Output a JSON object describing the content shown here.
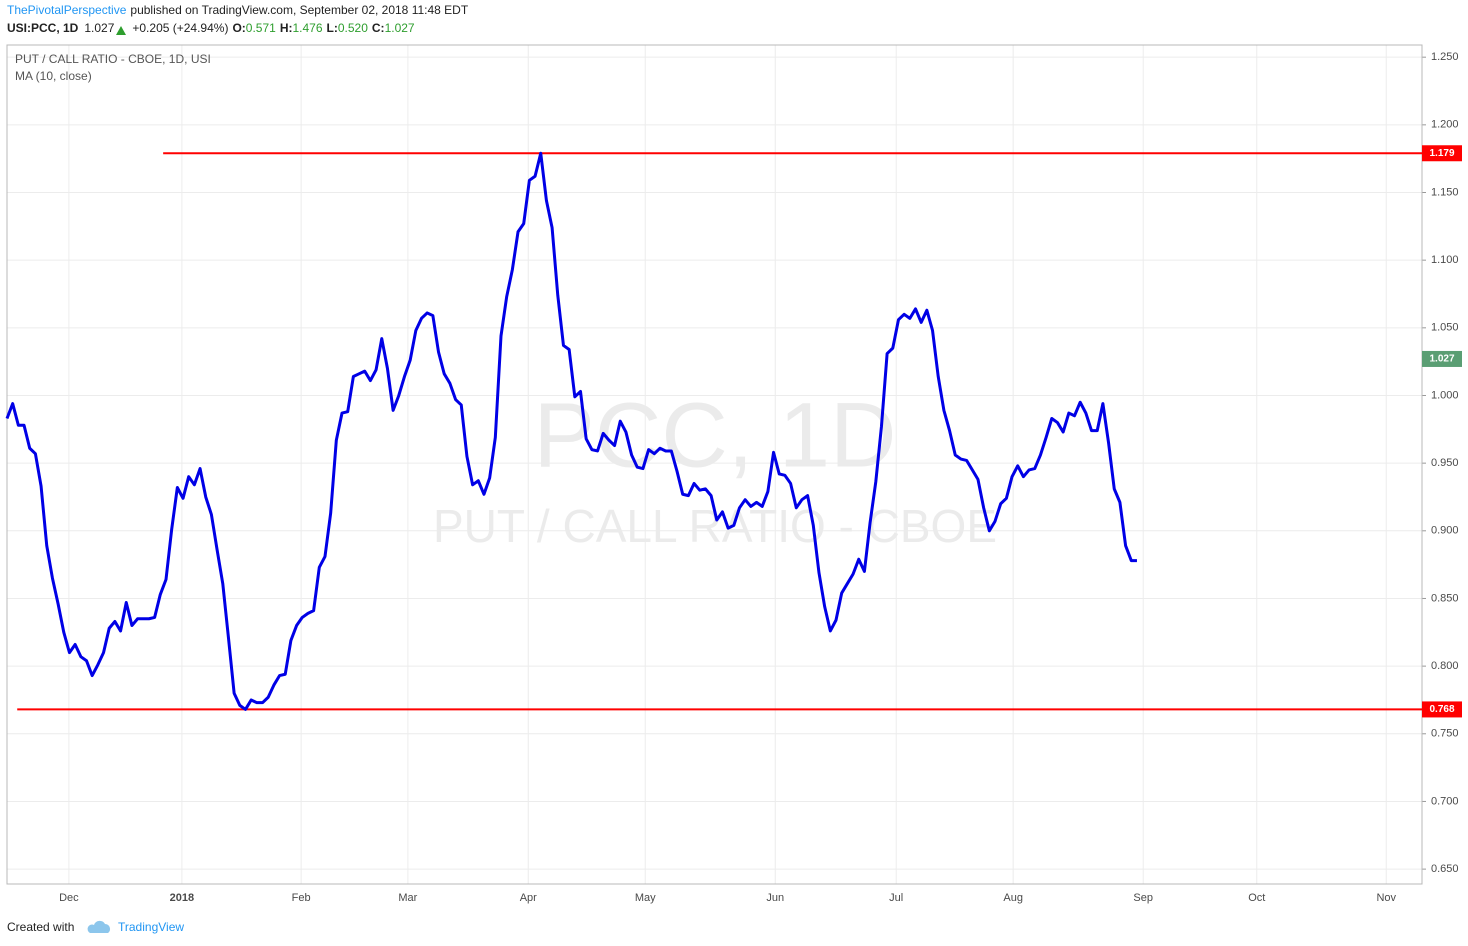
{
  "header": {
    "author": "ThePivotalPerspective",
    "published": "published on TradingView.com, September 02, 2018 11:48 EDT",
    "symbol": "USI:PCC, 1D",
    "last": "1.027",
    "change": "+0.205 (+24.94%)",
    "ohlc": [
      {
        "label": "O:",
        "value": "0.571"
      },
      {
        "label": "H:",
        "value": "1.476"
      },
      {
        "label": "L:",
        "value": "0.520"
      },
      {
        "label": "C:",
        "value": "1.027"
      }
    ]
  },
  "chart_data": {
    "type": "line",
    "title": "PUT / CALL RATIO - CBOE, 1D, USI",
    "watermark": "PCC, 1D",
    "watermark_subtitle": "PUT / CALL RATIO - CBOE",
    "x": [
      0,
      1,
      2,
      3,
      4,
      5,
      6,
      7,
      8,
      9,
      10,
      11,
      12,
      13,
      14,
      15,
      16,
      17,
      18,
      19,
      20,
      21,
      22,
      23,
      24,
      25,
      26,
      27,
      28,
      29,
      30,
      31,
      32,
      33,
      34,
      35,
      36,
      37,
      38,
      39,
      40,
      41,
      42,
      43,
      44,
      45,
      46,
      47,
      48,
      49,
      50,
      51,
      52,
      53,
      54,
      55,
      56,
      57,
      58,
      59,
      60,
      61,
      62,
      63,
      64,
      65,
      66,
      67,
      68,
      69,
      70,
      71,
      72,
      73,
      74,
      75,
      76,
      77,
      78,
      79,
      80,
      81,
      82,
      83,
      84,
      85,
      86,
      87,
      88,
      89,
      90,
      91,
      92,
      93,
      94,
      95,
      96,
      97,
      98,
      99,
      100,
      101,
      102,
      103,
      104,
      105,
      106,
      107,
      108,
      109,
      110,
      111,
      112,
      113,
      114,
      115,
      116,
      117,
      118,
      119,
      120,
      121,
      122,
      123,
      124,
      125,
      126,
      127,
      128,
      129,
      130,
      131,
      132,
      133,
      134,
      135,
      136,
      137,
      138,
      139,
      140,
      141,
      142,
      143,
      144,
      145,
      146,
      147,
      148,
      149,
      150,
      151,
      152,
      153,
      154,
      155,
      156,
      157,
      158,
      159,
      160,
      161,
      162,
      163,
      164,
      165,
      166,
      167,
      168,
      169,
      170,
      171,
      172,
      173,
      174,
      175,
      176,
      177,
      178,
      179,
      180,
      181,
      182,
      183,
      184,
      185,
      186,
      187,
      188,
      189,
      190,
      191,
      192,
      193,
      194,
      195,
      196,
      197,
      198,
      199
    ],
    "series": [
      {
        "name": "MA (10, close)",
        "color": "#0000e6",
        "values": [
          0.983,
          0.994,
          0.978,
          0.978,
          0.961,
          0.957,
          0.933,
          0.889,
          0.865,
          0.846,
          0.825,
          0.81,
          0.816,
          0.807,
          0.804,
          0.793,
          0.801,
          0.81,
          0.828,
          0.833,
          0.826,
          0.847,
          0.83,
          0.835,
          0.835,
          0.835,
          0.836,
          0.853,
          0.864,
          0.901,
          0.932,
          0.924,
          0.94,
          0.934,
          0.946,
          0.925,
          0.912,
          0.886,
          0.861,
          0.821,
          0.78,
          0.771,
          0.768,
          0.775,
          0.773,
          0.773,
          0.777,
          0.786,
          0.793,
          0.794,
          0.819,
          0.83,
          0.836,
          0.839,
          0.841,
          0.873,
          0.881,
          0.913,
          0.967,
          0.987,
          0.988,
          1.014,
          1.016,
          1.018,
          1.011,
          1.019,
          1.042,
          1.02,
          0.989,
          1.0,
          1.014,
          1.026,
          1.048,
          1.057,
          1.061,
          1.059,
          1.032,
          1.016,
          1.009,
          0.997,
          0.993,
          0.955,
          0.934,
          0.937,
          0.927,
          0.939,
          0.969,
          1.044,
          1.073,
          1.093,
          1.121,
          1.127,
          1.159,
          1.162,
          1.179,
          1.144,
          1.124,
          1.074,
          1.037,
          1.034,
          0.999,
          1.003,
          0.968,
          0.96,
          0.959,
          0.972,
          0.967,
          0.963,
          0.981,
          0.973,
          0.956,
          0.947,
          0.946,
          0.96,
          0.957,
          0.961,
          0.959,
          0.959,
          0.944,
          0.927,
          0.926,
          0.935,
          0.93,
          0.931,
          0.926,
          0.908,
          0.914,
          0.902,
          0.904,
          0.917,
          0.923,
          0.918,
          0.921,
          0.918,
          0.929,
          0.958,
          0.942,
          0.941,
          0.935,
          0.917,
          0.923,
          0.926,
          0.904,
          0.869,
          0.844,
          0.826,
          0.834,
          0.854,
          0.861,
          0.868,
          0.879,
          0.87,
          0.906,
          0.936,
          0.977,
          1.031,
          1.035,
          1.056,
          1.06,
          1.057,
          1.064,
          1.054,
          1.063,
          1.048,
          1.014,
          0.989,
          0.974,
          0.956,
          0.953,
          0.952,
          0.945,
          0.938,
          0.917,
          0.9,
          0.907,
          0.92,
          0.924,
          0.94,
          0.948,
          0.94,
          0.945,
          0.946,
          0.956,
          0.969,
          0.983,
          0.98,
          0.973,
          0.987,
          0.985,
          0.995,
          0.987,
          0.974,
          0.974,
          0.994,
          0.965,
          0.931,
          0.921,
          0.889,
          0.878,
          0.878
        ]
      }
    ],
    "xlim": [
      0,
      249.2
    ],
    "xticks": [
      {
        "value": 10.9,
        "label": "Dec"
      },
      {
        "value": 30.8,
        "label": "2018"
      },
      {
        "value": 51.8,
        "label": "Feb"
      },
      {
        "value": 70.6,
        "label": "Mar"
      },
      {
        "value": 91.8,
        "label": "Apr"
      },
      {
        "value": 112.4,
        "label": "May"
      },
      {
        "value": 135.3,
        "label": "Jun"
      },
      {
        "value": 156.6,
        "label": "Jul"
      },
      {
        "value": 177.2,
        "label": "Aug"
      },
      {
        "value": 200.1,
        "label": "Sep"
      },
      {
        "value": 220.1,
        "label": "Oct"
      },
      {
        "value": 242.9,
        "label": "Nov"
      }
    ],
    "ylim": [
      0.639,
      1.259
    ],
    "yticks": [
      {
        "value": 0.65,
        "label": "0.650"
      },
      {
        "value": 0.7,
        "label": "0.700"
      },
      {
        "value": 0.75,
        "label": "0.750"
      },
      {
        "value": 0.8,
        "label": "0.800"
      },
      {
        "value": 0.85,
        "label": "0.850"
      },
      {
        "value": 0.9,
        "label": "0.900"
      },
      {
        "value": 0.95,
        "label": "0.950"
      },
      {
        "value": 1.0,
        "label": "1.000"
      },
      {
        "value": 1.05,
        "label": "1.050"
      },
      {
        "value": 1.1,
        "label": "1.100"
      },
      {
        "value": 1.15,
        "label": "1.150"
      },
      {
        "value": 1.2,
        "label": "1.200"
      },
      {
        "value": 1.25,
        "label": "1.250"
      }
    ],
    "grid": true,
    "hlines": [
      {
        "value": 1.179,
        "x_start": 27.5,
        "color": "#ff0000"
      },
      {
        "value": 0.768,
        "x_start": 1.8,
        "color": "#ff0000"
      }
    ],
    "last_price": {
      "value": 1.027,
      "color": "#5a9e73"
    }
  },
  "footer": {
    "text": "Created with",
    "brand": "TradingView"
  }
}
